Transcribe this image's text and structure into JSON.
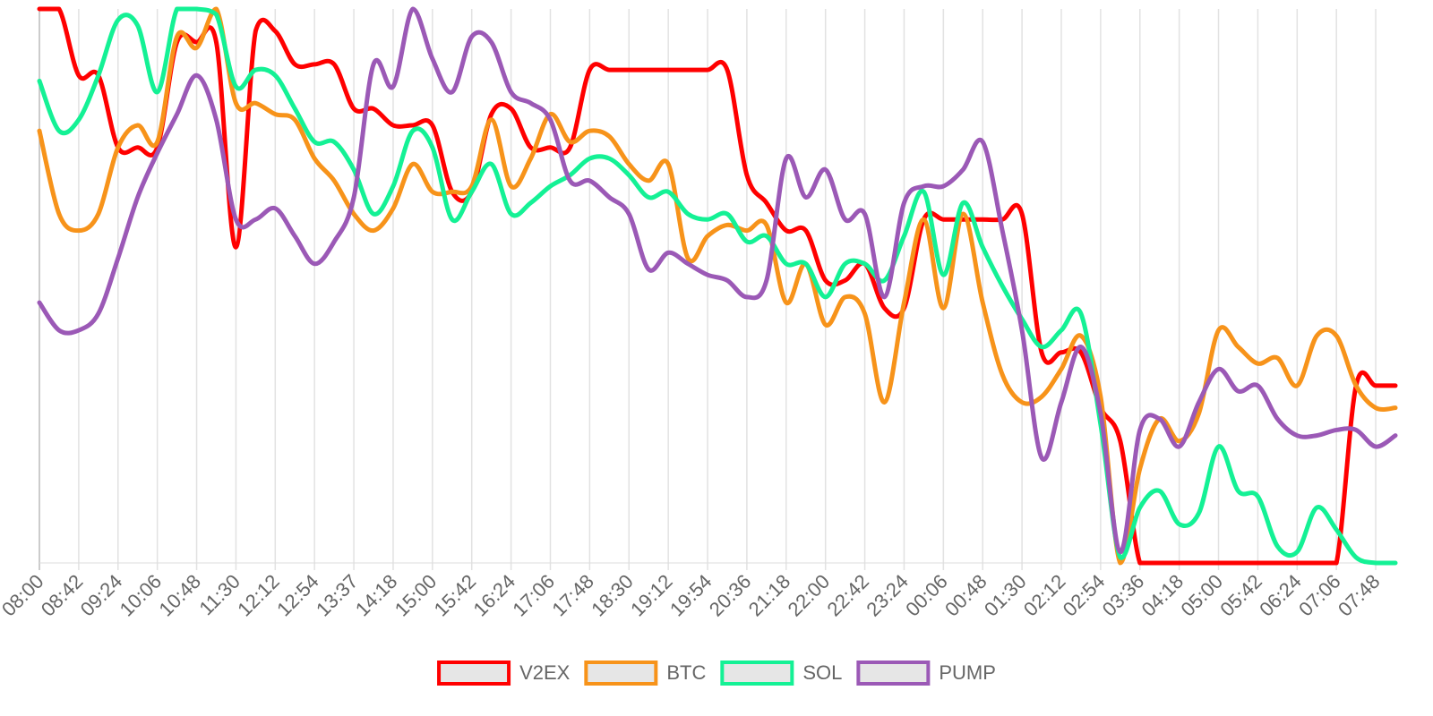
{
  "chart_data": {
    "type": "line",
    "categories": [
      "08:00",
      null,
      "08:42",
      null,
      "09:24",
      null,
      "10:06",
      null,
      "10:48",
      null,
      "11:30",
      null,
      "12:12",
      null,
      "12:54",
      null,
      "13:37",
      null,
      "14:18",
      null,
      "15:00",
      null,
      "15:42",
      null,
      "16:24",
      null,
      "17:06",
      null,
      "17:48",
      null,
      "18:30",
      null,
      "19:12",
      null,
      "19:54",
      null,
      "20:36",
      null,
      "21:18",
      null,
      "22:00",
      null,
      "22:42",
      null,
      "23:24",
      null,
      "00:06",
      null,
      "00:48",
      null,
      "01:30",
      null,
      "02:12",
      null,
      "02:54",
      null,
      "03:36",
      null,
      "04:18",
      null,
      "05:00",
      null,
      "05:42",
      null,
      "06:24",
      null,
      "07:06",
      null,
      "07:48",
      null
    ],
    "series": [
      {
        "name": "V2EX",
        "color": "#ff0000",
        "values": [
          100,
          100,
          88,
          88,
          75,
          75,
          75,
          94,
          94,
          94,
          57,
          96,
          96,
          90,
          90,
          90,
          82,
          82,
          79,
          79,
          79,
          67,
          67,
          81,
          82,
          75,
          75,
          75,
          89,
          89,
          89,
          89,
          89,
          89,
          89,
          89,
          70,
          65,
          60,
          60,
          51,
          51,
          54,
          46,
          46,
          62,
          62,
          62,
          62,
          62,
          63,
          38,
          38,
          38,
          28,
          22,
          0,
          0,
          0,
          0,
          0,
          0,
          0,
          0,
          0,
          0,
          0,
          32,
          32,
          32
        ]
      },
      {
        "name": "BTC",
        "color": "#f7931a",
        "values": [
          78,
          63,
          60,
          63,
          75,
          79,
          76,
          95,
          93,
          100,
          83,
          83,
          81,
          80,
          73,
          69,
          63,
          60,
          64,
          72,
          67,
          67,
          68,
          80,
          68,
          73,
          81,
          76,
          78,
          77,
          72,
          69,
          72,
          55,
          59,
          61,
          60,
          61,
          47,
          54,
          43,
          48,
          45,
          29,
          47,
          62,
          46,
          63,
          47,
          34,
          29,
          30,
          35,
          41,
          30,
          0,
          17,
          26,
          22,
          27,
          42,
          39,
          36,
          37,
          32,
          41,
          41,
          32,
          28,
          28
        ]
      },
      {
        "name": "SOL",
        "color": "#14f195",
        "values": [
          87,
          78,
          80,
          88,
          98,
          97,
          85,
          100,
          100,
          99,
          86,
          89,
          88,
          82,
          76,
          76,
          71,
          63,
          68,
          78,
          75,
          62,
          67,
          72,
          63,
          65,
          68,
          70,
          73,
          73,
          70,
          66,
          67,
          63,
          62,
          63,
          58,
          59,
          54,
          54,
          48,
          54,
          54,
          51,
          59,
          67,
          52,
          65,
          57,
          50,
          44,
          39,
          42,
          45,
          25,
          1,
          10,
          13,
          7,
          9,
          21,
          13,
          12,
          3,
          2,
          10,
          6,
          1,
          0,
          0
        ]
      },
      {
        "name": "PUMP",
        "color": "#9b59b6",
        "values": [
          47,
          42,
          42,
          45,
          55,
          66,
          74,
          81,
          88,
          80,
          62,
          62,
          64,
          59,
          54,
          58,
          66,
          90,
          86,
          100,
          91,
          85,
          95,
          94,
          85,
          83,
          80,
          69,
          69,
          66,
          63,
          53,
          56,
          54,
          52,
          51,
          48,
          51,
          73,
          66,
          71,
          62,
          63,
          48,
          65,
          68,
          68,
          71,
          76,
          60,
          42,
          19,
          29,
          39,
          27,
          2,
          24,
          26,
          21,
          29,
          35,
          31,
          32,
          26,
          23,
          23,
          24,
          24,
          21,
          23
        ]
      }
    ],
    "ylim": [
      0,
      100
    ],
    "grid": true,
    "legend": "bottom"
  }
}
